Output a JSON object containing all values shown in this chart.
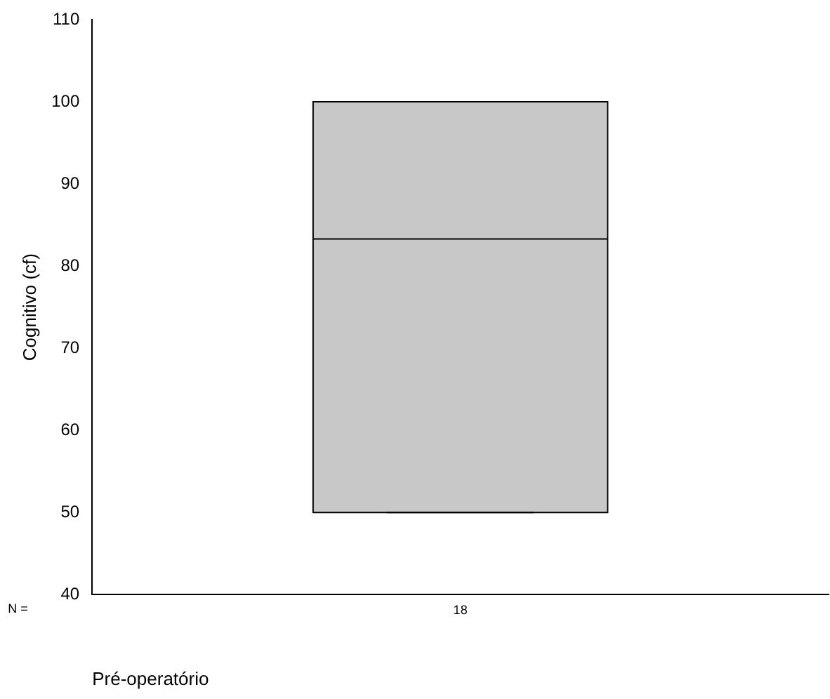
{
  "chart_data": {
    "type": "box",
    "xlabel": "Pré-operatório",
    "ylabel": "Cognitivo (cf)",
    "categories": [
      "18"
    ],
    "boxes": [
      {
        "low": 50,
        "q1": 50,
        "median": 83.3,
        "q3": 100,
        "high": 100
      }
    ],
    "color": "#c8c8c8",
    "ylim": [
      40,
      110
    ],
    "yticks": [
      40,
      50,
      60,
      70,
      80,
      90,
      100,
      110
    ],
    "grid": false,
    "annotations": [
      "N ="
    ]
  }
}
